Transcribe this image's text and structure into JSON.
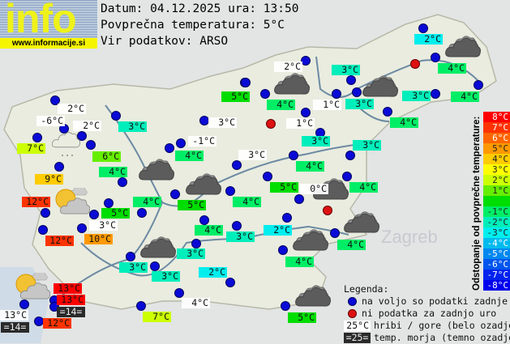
{
  "logo": {
    "word": "info",
    "url": "www.informacije.si"
  },
  "header": {
    "date_line": "Datum: 04.12.2025 ura: 13:50",
    "avg_line": "Povprečna temperatura: 5°C",
    "source_line": "Vir podatkov: ARSO"
  },
  "average_temperature": 5,
  "colors": {
    "station_available": "#0a0ad6",
    "station_missing": "#dd1111",
    "mountain_bg": "#ffffff",
    "sea_bg": "#2a2a2a"
  },
  "colorbar": {
    "title": "Odstopanje od povprečne temperature:",
    "cells": [
      {
        "label": "8°C",
        "color": "#ff0000"
      },
      {
        "label": "7°C",
        "color": "#ff3300"
      },
      {
        "label": "6°C",
        "color": "#ff6600"
      },
      {
        "label": "5°C",
        "color": "#ff9900"
      },
      {
        "label": "4°C",
        "color": "#ffcc00"
      },
      {
        "label": "3°C",
        "color": "#ffff00"
      },
      {
        "label": "2°C",
        "color": "#ccff00"
      },
      {
        "label": "1°C",
        "color": "#66ee00"
      },
      {
        "label": "",
        "color": "#00dd00"
      },
      {
        "label": "-1°C",
        "color": "#00ee66"
      },
      {
        "label": "-2°C",
        "color": "#00eebb"
      },
      {
        "label": "-3°C",
        "color": "#00eeee"
      },
      {
        "label": "-4°C",
        "color": "#00bbee"
      },
      {
        "label": "-5°C",
        "color": "#0088ee"
      },
      {
        "label": "-6°C",
        "color": "#0055ee"
      },
      {
        "label": "-7°C",
        "color": "#0022ee"
      },
      {
        "label": "-8°C",
        "color": "#0000ee"
      }
    ]
  },
  "stations": [
    {
      "text": "2°C",
      "type": "m"
    },
    {
      "text": "-6°C",
      "type": "m"
    },
    {
      "text": "2°C",
      "type": "m"
    },
    {
      "text": "7°C",
      "type": "n"
    },
    {
      "text": "3°C",
      "type": "n"
    },
    {
      "text": "6°C",
      "type": "n"
    },
    {
      "text": "4°C",
      "type": "n"
    },
    {
      "text": "3°C",
      "type": "m"
    },
    {
      "text": "-1°C",
      "type": "m"
    },
    {
      "text": "4°C",
      "type": "n"
    },
    {
      "text": "5°C",
      "type": "n"
    },
    {
      "text": "3°C",
      "type": "m"
    },
    {
      "text": "9°C",
      "type": "n"
    },
    {
      "text": "12°C",
      "type": "n"
    },
    {
      "text": "4°C",
      "type": "n"
    },
    {
      "text": "5°C",
      "type": "n"
    },
    {
      "text": "5°C",
      "type": "n"
    },
    {
      "text": "4°C",
      "type": "n"
    },
    {
      "text": "3°C",
      "type": "m"
    },
    {
      "text": "12°C",
      "type": "n"
    },
    {
      "text": "10°C",
      "type": "n"
    },
    {
      "text": "4°C",
      "type": "n"
    },
    {
      "text": "3°C",
      "type": "n"
    },
    {
      "text": "3°C",
      "type": "n"
    },
    {
      "text": "3°C",
      "type": "n"
    },
    {
      "text": "3°C",
      "type": "n"
    },
    {
      "text": "2°C",
      "type": "n"
    },
    {
      "text": "13°C",
      "type": "n"
    },
    {
      "text": "13°C",
      "type": "n"
    },
    {
      "text": "=14=",
      "type": "sea"
    },
    {
      "text": "13°C",
      "type": "m"
    },
    {
      "text": "=14=",
      "type": "sea"
    },
    {
      "text": "12°C",
      "type": "n"
    },
    {
      "text": "4°C",
      "type": "m"
    },
    {
      "text": "7°C",
      "type": "n"
    },
    {
      "text": "2°C",
      "type": "n"
    },
    {
      "text": "4°C",
      "type": "n"
    },
    {
      "text": "4°C",
      "type": "n"
    },
    {
      "text": "3°C",
      "type": "n"
    },
    {
      "text": "4°C",
      "type": "n"
    },
    {
      "text": "3°C",
      "type": "n"
    },
    {
      "text": "3°C",
      "type": "n"
    },
    {
      "text": "4°C",
      "type": "n"
    },
    {
      "text": "4°C",
      "type": "n"
    },
    {
      "text": "5°C",
      "type": "n"
    },
    {
      "text": "0°C",
      "type": "m"
    },
    {
      "text": "2°C",
      "type": "m"
    },
    {
      "text": "3°C",
      "type": "n"
    },
    {
      "text": "4°C",
      "type": "n"
    },
    {
      "text": "1°C",
      "type": "m"
    },
    {
      "text": "3°C",
      "type": "n"
    },
    {
      "text": "1°C",
      "type": "m"
    },
    {
      "text": "2°C",
      "type": "n"
    },
    {
      "text": "4°C",
      "type": "n"
    },
    {
      "text": "4°C",
      "type": "n"
    },
    {
      "text": "5°C",
      "type": "n"
    }
  ],
  "weather_icons": [
    "cloudy-light",
    "overcast",
    "overcast",
    "partly-cloudy",
    "overcast",
    "overcast",
    "overcast",
    "overcast",
    "overcast",
    "overcast",
    "overcast",
    "overcast",
    "partly-cloudy"
  ],
  "legend": {
    "title": "Legenda:",
    "available": "na voljo so podatki zadnje ure",
    "missing": "ni podatka za zadnjo uro",
    "mountain_sample": "25°C",
    "mountain_text": "hribi / gore (belo ozadje)",
    "sea_sample": "=25=",
    "sea_text": "temp. morja (temno ozadje)"
  }
}
